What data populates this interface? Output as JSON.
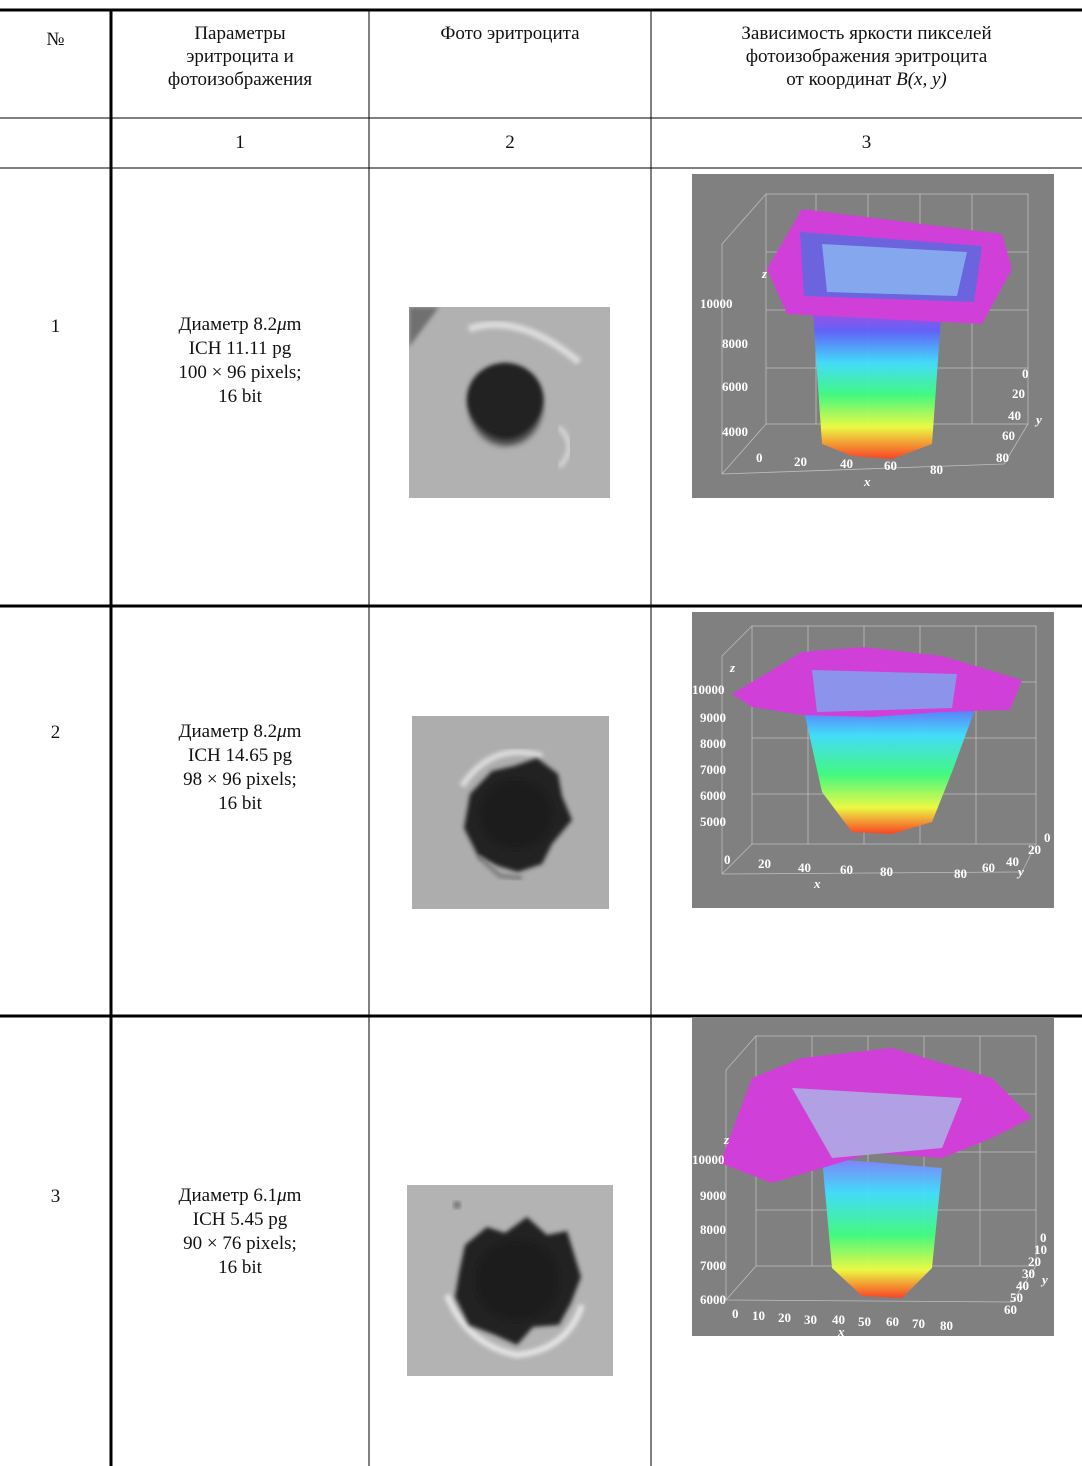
{
  "header": {
    "num": "№",
    "params": [
      "Параметры",
      "эритроцита и",
      "фотоизображения"
    ],
    "photo": "Фото эритроцита",
    "dependence": [
      "Зависимость яркости пикселей",
      "фотоизображения эритроцита",
      "от координат"
    ],
    "dependence_math": "B(x, y)"
  },
  "col_numbers": [
    "1",
    "2",
    "3"
  ],
  "rows": [
    {
      "n": "1",
      "diameter_label": "Диаметр",
      "diameter_value": "8.2",
      "diameter_unit_mu": "μ",
      "diameter_unit_m": "m",
      "ich": "ICH 11.11 pg",
      "pixels": "100 × 96 pixels;",
      "bit": "16 bit",
      "plot": {
        "z_label": "z",
        "x_label": "x",
        "y_label": "y",
        "z_ticks": [
          "10000",
          "8000",
          "6000",
          "4000"
        ],
        "x_ticks": [
          "0",
          "20",
          "40",
          "60",
          "80"
        ],
        "y_ticks": [
          "0",
          "20",
          "40",
          "60",
          "80"
        ]
      }
    },
    {
      "n": "2",
      "diameter_label": "Диаметр",
      "diameter_value": "8.2",
      "diameter_unit_mu": "μ",
      "diameter_unit_m": "m",
      "ich": "ICH 14.65 pg",
      "pixels": "98 × 96 pixels;",
      "bit": "16 bit",
      "plot": {
        "z_label": "z",
        "x_label": "x",
        "y_label": "y",
        "z_ticks": [
          "10000",
          "9000",
          "8000",
          "7000",
          "6000",
          "5000"
        ],
        "x_ticks": [
          "0",
          "20",
          "40",
          "60",
          "80"
        ],
        "y_ticks": [
          "0",
          "20",
          "40",
          "60",
          "80"
        ]
      }
    },
    {
      "n": "3",
      "diameter_label": "Диаметр",
      "diameter_value": "6.1",
      "diameter_unit_mu": "μ",
      "diameter_unit_m": "m",
      "ich": "ICH 5.45 pg",
      "pixels": "90 × 76 pixels;",
      "bit": "16 bit",
      "plot": {
        "z_label": "z",
        "x_label": "x",
        "y_label": "y",
        "z_ticks": [
          "10000",
          "9000",
          "8000",
          "7000",
          "6000"
        ],
        "x_ticks": [
          "0",
          "10",
          "20",
          "30",
          "40",
          "50",
          "60",
          "70",
          "80"
        ],
        "y_ticks": [
          "0",
          "10",
          "20",
          "30",
          "40",
          "50",
          "60"
        ]
      }
    }
  ]
}
